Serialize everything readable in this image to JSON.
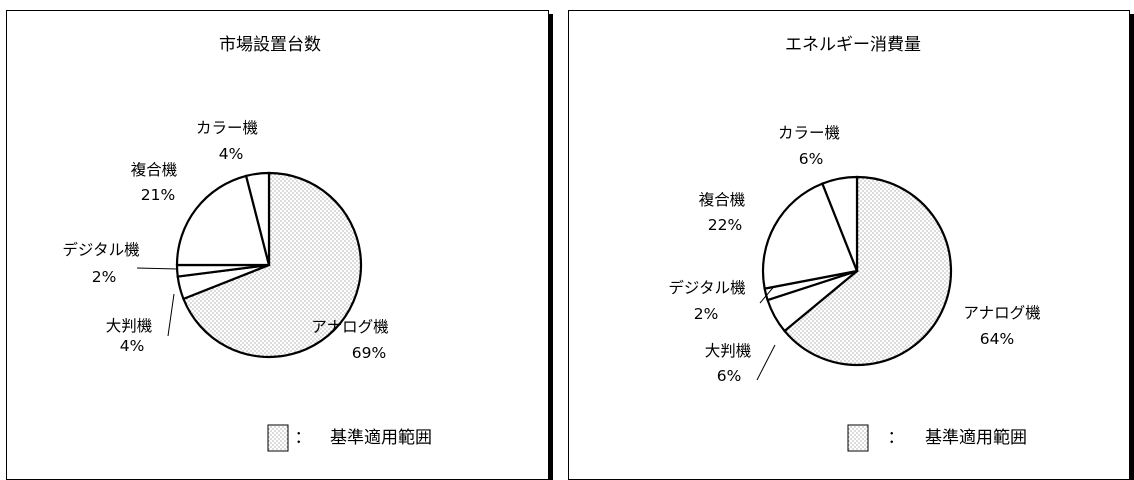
{
  "chart_data": [
    {
      "type": "pie",
      "title": "市場設置台数",
      "unit": "%",
      "slices": [
        {
          "label": "アナログ機",
          "value": 69,
          "hatched": true
        },
        {
          "label": "大判機",
          "value": 4,
          "hatched": false
        },
        {
          "label": "デジタル機",
          "value": 2,
          "hatched": false
        },
        {
          "label": "複合機",
          "value": 21,
          "hatched": false
        },
        {
          "label": "カラー機",
          "value": 4,
          "hatched": false
        }
      ],
      "legend": {
        "marker_text": "：",
        "text": "基準適用範囲",
        "placement": "bottom-right"
      }
    },
    {
      "type": "pie",
      "title": "エネルギー消費量",
      "unit": "%",
      "slices": [
        {
          "label": "アナログ機",
          "value": 64,
          "hatched": true
        },
        {
          "label": "大判機",
          "value": 6,
          "hatched": false
        },
        {
          "label": "デジタル機",
          "value": 2,
          "hatched": false
        },
        {
          "label": "複合機",
          "value": 22,
          "hatched": false
        },
        {
          "label": "カラー機",
          "value": 6,
          "hatched": false
        }
      ],
      "legend": {
        "marker_text": "：",
        "text": "基準適用範囲",
        "placement": "bottom-right"
      }
    }
  ],
  "colors": {
    "stroke": "#000000",
    "background": "#ffffff",
    "hatch_dot": "#555555"
  }
}
